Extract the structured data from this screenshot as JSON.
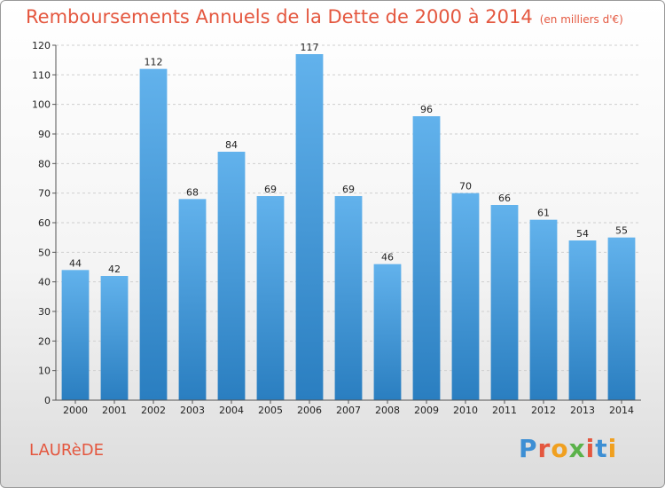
{
  "title": "Remboursements Annuels de la Dette de 2000 à 2014",
  "unit": "(en milliers d'€)",
  "commune": "LAURèDE",
  "logo": {
    "text": "Proxiti",
    "colors": [
      "#3d8fd4",
      "#e4573f",
      "#f0a020",
      "#5bb24a",
      "#e4573f",
      "#3d8fd4",
      "#f0a020"
    ]
  },
  "colors": {
    "bar_light": "#62b2ec",
    "bar_dark": "#2a7ec0",
    "title": "#e4573f"
  },
  "chart_data": {
    "type": "bar",
    "categories": [
      "2000",
      "2001",
      "2002",
      "2003",
      "2004",
      "2005",
      "2006",
      "2007",
      "2008",
      "2009",
      "2010",
      "2011",
      "2012",
      "2013",
      "2014"
    ],
    "values": [
      44,
      42,
      112,
      68,
      84,
      69,
      117,
      69,
      46,
      96,
      70,
      66,
      61,
      54,
      55
    ],
    "ylim": [
      0,
      120
    ],
    "yticks": [
      0,
      10,
      20,
      30,
      40,
      50,
      60,
      70,
      80,
      90,
      100,
      110,
      120
    ],
    "grid": true
  }
}
